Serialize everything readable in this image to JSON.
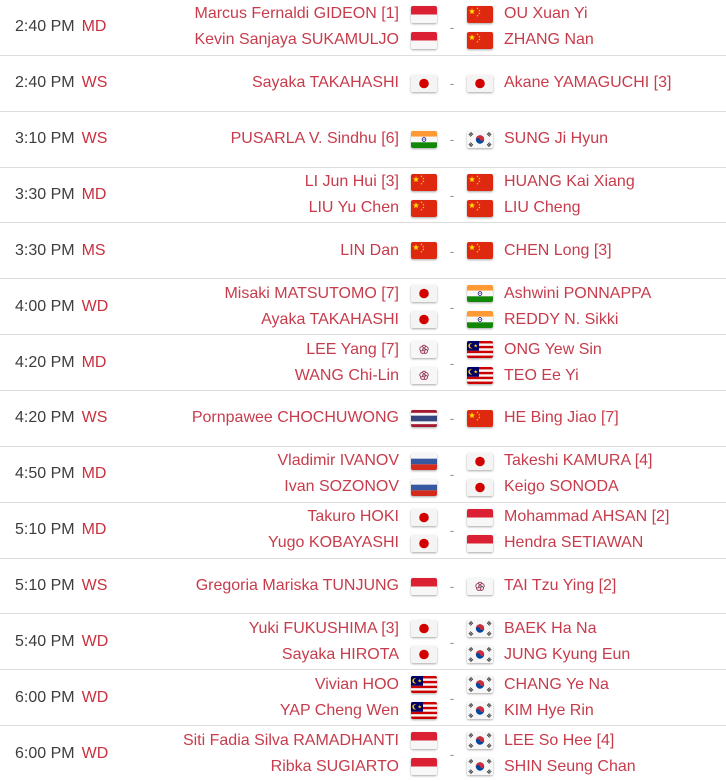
{
  "colors": {
    "player_name": "#c73c4c",
    "match_type": "#c9303e",
    "time_text": "#3d3d3d",
    "dash": "#999999",
    "row_border": "#dddddd"
  },
  "matches": [
    {
      "time": "2:40 PM",
      "type": "MD",
      "vs": "-",
      "team1": [
        {
          "name": "Marcus Fernaldi GIDEON [1]",
          "flag": "indonesia"
        },
        {
          "name": "Kevin Sanjaya SUKAMULJO",
          "flag": "indonesia"
        }
      ],
      "team2": [
        {
          "name": "OU Xuan Yi",
          "flag": "china"
        },
        {
          "name": "ZHANG Nan",
          "flag": "china"
        }
      ]
    },
    {
      "time": "2:40 PM",
      "type": "WS",
      "vs": "-",
      "team1": [
        {
          "name": "Sayaka TAKAHASHI",
          "flag": "japan"
        }
      ],
      "team2": [
        {
          "name": "Akane YAMAGUCHI [3]",
          "flag": "japan"
        }
      ]
    },
    {
      "time": "3:10 PM",
      "type": "WS",
      "vs": "-",
      "team1": [
        {
          "name": "PUSARLA V. Sindhu [6]",
          "flag": "india"
        }
      ],
      "team2": [
        {
          "name": "SUNG Ji Hyun",
          "flag": "korea"
        }
      ]
    },
    {
      "time": "3:30 PM",
      "type": "MD",
      "vs": "-",
      "team1": [
        {
          "name": "LI Jun Hui [3]",
          "flag": "china"
        },
        {
          "name": "LIU Yu Chen",
          "flag": "china"
        }
      ],
      "team2": [
        {
          "name": "HUANG Kai Xiang",
          "flag": "china"
        },
        {
          "name": "LIU Cheng",
          "flag": "china"
        }
      ]
    },
    {
      "time": "3:30 PM",
      "type": "MS",
      "vs": "-",
      "team1": [
        {
          "name": "LIN Dan",
          "flag": "china"
        }
      ],
      "team2": [
        {
          "name": "CHEN Long [3]",
          "flag": "china"
        }
      ]
    },
    {
      "time": "4:00 PM",
      "type": "WD",
      "vs": "-",
      "team1": [
        {
          "name": "Misaki MATSUTOMO [7]",
          "flag": "japan"
        },
        {
          "name": "Ayaka TAKAHASHI",
          "flag": "japan"
        }
      ],
      "team2": [
        {
          "name": "Ashwini PONNAPPA",
          "flag": "india"
        },
        {
          "name": "REDDY N. Sikki",
          "flag": "india"
        }
      ]
    },
    {
      "time": "4:20 PM",
      "type": "MD",
      "vs": "-",
      "team1": [
        {
          "name": "LEE Yang [7]",
          "flag": "chinese-taipei"
        },
        {
          "name": "WANG Chi-Lin",
          "flag": "chinese-taipei"
        }
      ],
      "team2": [
        {
          "name": "ONG Yew Sin",
          "flag": "malaysia"
        },
        {
          "name": "TEO Ee Yi",
          "flag": "malaysia"
        }
      ]
    },
    {
      "time": "4:20 PM",
      "type": "WS",
      "vs": "-",
      "team1": [
        {
          "name": "Pornpawee CHOCHUWONG",
          "flag": "thailand"
        }
      ],
      "team2": [
        {
          "name": "HE Bing Jiao [7]",
          "flag": "china"
        }
      ]
    },
    {
      "time": "4:50 PM",
      "type": "MD",
      "vs": "-",
      "team1": [
        {
          "name": "Vladimir IVANOV",
          "flag": "russia"
        },
        {
          "name": "Ivan SOZONOV",
          "flag": "russia"
        }
      ],
      "team2": [
        {
          "name": "Takeshi KAMURA [4]",
          "flag": "japan"
        },
        {
          "name": "Keigo SONODA",
          "flag": "japan"
        }
      ]
    },
    {
      "time": "5:10 PM",
      "type": "MD",
      "vs": "-",
      "team1": [
        {
          "name": "Takuro HOKI",
          "flag": "japan"
        },
        {
          "name": "Yugo KOBAYASHI",
          "flag": "japan"
        }
      ],
      "team2": [
        {
          "name": "Mohammad AHSAN [2]",
          "flag": "indonesia"
        },
        {
          "name": "Hendra SETIAWAN",
          "flag": "indonesia"
        }
      ]
    },
    {
      "time": "5:10 PM",
      "type": "WS",
      "vs": "-",
      "team1": [
        {
          "name": "Gregoria Mariska TUNJUNG",
          "flag": "indonesia"
        }
      ],
      "team2": [
        {
          "name": "TAI Tzu Ying [2]",
          "flag": "chinese-taipei"
        }
      ]
    },
    {
      "time": "5:40 PM",
      "type": "WD",
      "vs": "-",
      "team1": [
        {
          "name": "Yuki FUKUSHIMA [3]",
          "flag": "japan"
        },
        {
          "name": "Sayaka HIROTA",
          "flag": "japan"
        }
      ],
      "team2": [
        {
          "name": "BAEK Ha Na",
          "flag": "korea"
        },
        {
          "name": "JUNG Kyung Eun",
          "flag": "korea"
        }
      ]
    },
    {
      "time": "6:00 PM",
      "type": "WD",
      "vs": "-",
      "team1": [
        {
          "name": "Vivian HOO",
          "flag": "malaysia"
        },
        {
          "name": "YAP Cheng Wen",
          "flag": "malaysia"
        }
      ],
      "team2": [
        {
          "name": "CHANG Ye Na",
          "flag": "korea"
        },
        {
          "name": "KIM Hye Rin",
          "flag": "korea"
        }
      ]
    },
    {
      "time": "6:00 PM",
      "type": "WD",
      "vs": "-",
      "team1": [
        {
          "name": "Siti Fadia Silva RAMADHANTI",
          "flag": "indonesia"
        },
        {
          "name": "Ribka SUGIARTO",
          "flag": "indonesia"
        }
      ],
      "team2": [
        {
          "name": "LEE So Hee [4]",
          "flag": "korea"
        },
        {
          "name": "SHIN Seung Chan",
          "flag": "korea"
        }
      ]
    }
  ]
}
